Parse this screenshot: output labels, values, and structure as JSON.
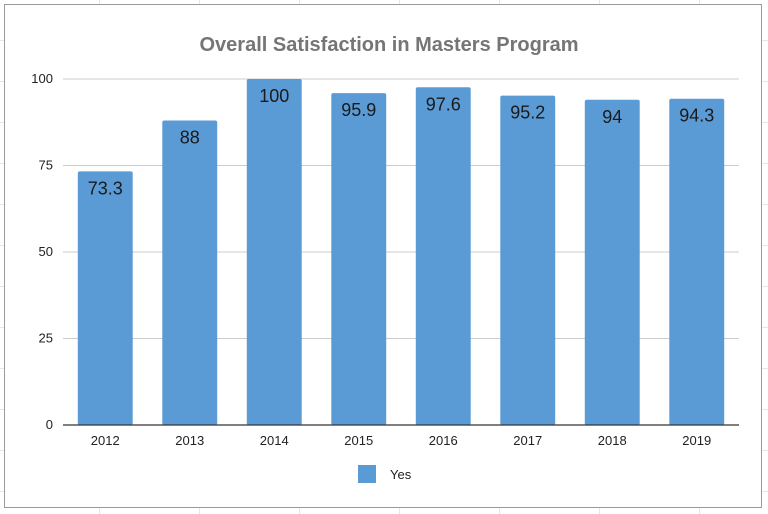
{
  "chart_data": {
    "type": "bar",
    "title": "Overall Satisfaction in Masters Program",
    "xlabel": "",
    "ylabel": "",
    "categories": [
      "2012",
      "2013",
      "2014",
      "2015",
      "2016",
      "2017",
      "2018",
      "2019"
    ],
    "series": [
      {
        "name": "Yes",
        "color": "#5b9bd5",
        "values": [
          73.3,
          88,
          100,
          95.9,
          97.6,
          95.2,
          94,
          94.3
        ],
        "labels": [
          "73.3",
          "88",
          "100",
          "95.9",
          "97.6",
          "95.2",
          "94",
          "94.3"
        ]
      }
    ],
    "ylim": [
      0,
      100
    ],
    "yticks": [
      0,
      25,
      50,
      75,
      100
    ],
    "grid": true,
    "legend_position": "bottom"
  }
}
